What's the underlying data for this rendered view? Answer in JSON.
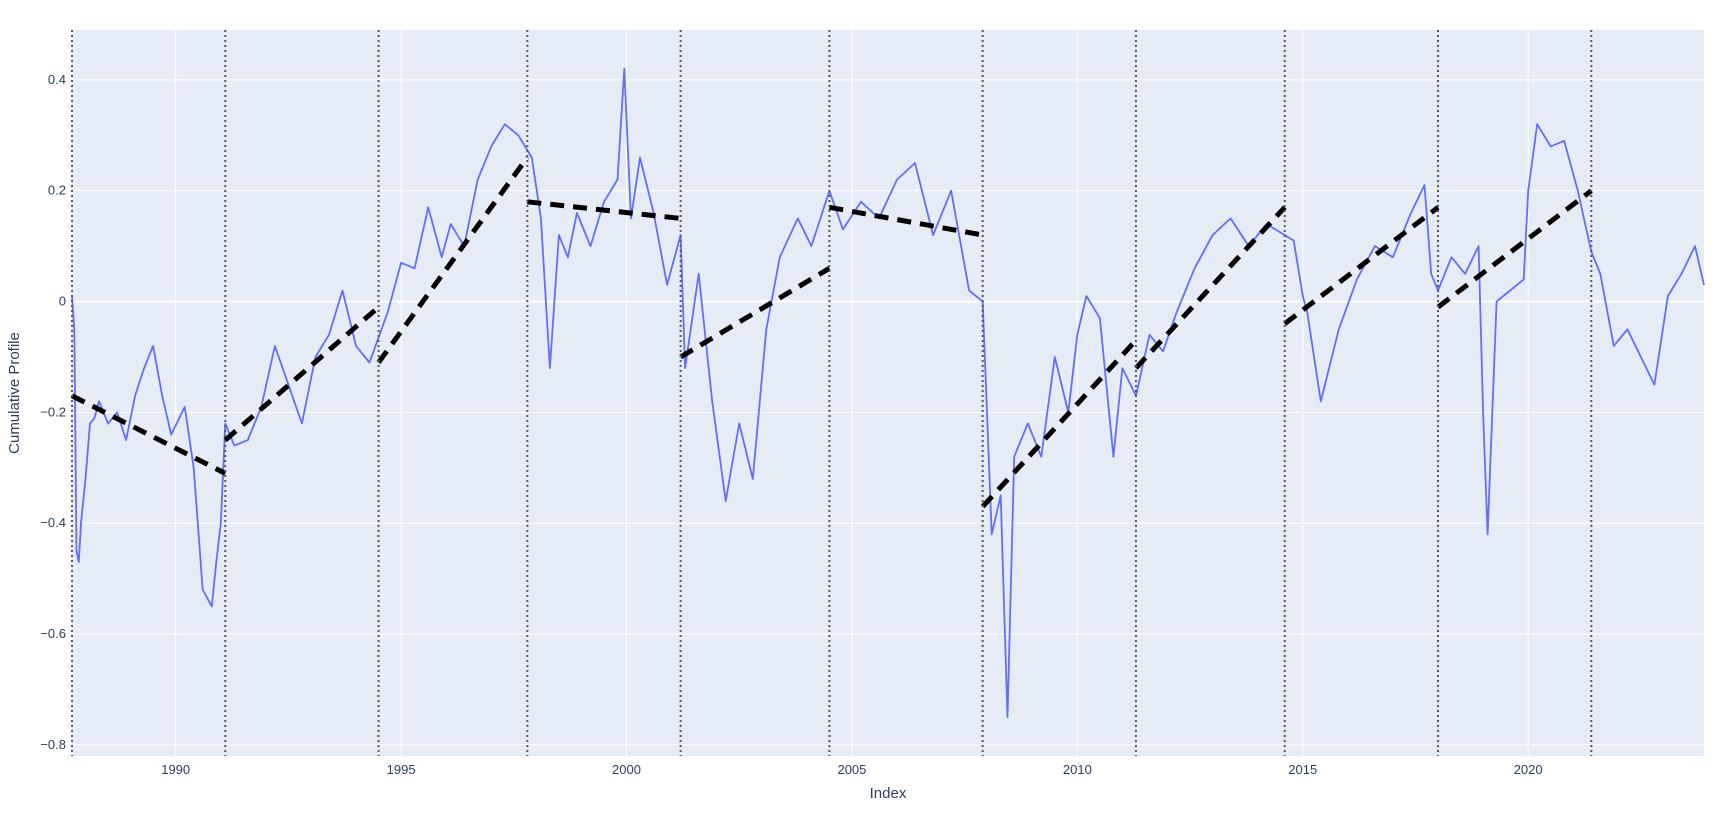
{
  "chart_data": {
    "type": "line",
    "xlabel": "Index",
    "ylabel": "Cumulative Profile",
    "xlim": [
      1987.7,
      2023.9
    ],
    "ylim": [
      -0.82,
      0.49
    ],
    "x_ticks": [
      {
        "v": 1990,
        "label": "1990"
      },
      {
        "v": 1995,
        "label": "1995"
      },
      {
        "v": 2000,
        "label": "2000"
      },
      {
        "v": 2005,
        "label": "2005"
      },
      {
        "v": 2010,
        "label": "2010"
      },
      {
        "v": 2015,
        "label": "2015"
      },
      {
        "v": 2020,
        "label": "2020"
      }
    ],
    "y_ticks": [
      {
        "v": 0.4,
        "label": "0.4"
      },
      {
        "v": 0.2,
        "label": "0.2"
      },
      {
        "v": 0,
        "label": "0"
      },
      {
        "v": -0.2,
        "label": "−0.2"
      },
      {
        "v": -0.4,
        "label": "−0.4"
      },
      {
        "v": -0.6,
        "label": "−0.6"
      },
      {
        "v": -0.8,
        "label": "−0.8"
      }
    ],
    "grid": true,
    "colors": {
      "background": "#e5ecf6",
      "grid": "#ffffff",
      "series": "#636efa",
      "trend": "#000000",
      "breaks": "#555566"
    },
    "series": [
      {
        "x": [
          1987.7,
          1987.75,
          1987.8,
          1987.85,
          1987.9,
          1988.0,
          1988.1,
          1988.2,
          1988.3,
          1988.5,
          1988.7,
          1988.9,
          1989.1,
          1989.3,
          1989.5,
          1989.7,
          1989.9,
          1990.2,
          1990.4,
          1990.6,
          1990.8,
          1990.9,
          1991.0,
          1991.1,
          1991.3,
          1991.6,
          1991.9,
          1992.2,
          1992.5,
          1992.8,
          1993.1,
          1993.4,
          1993.7,
          1994.0,
          1994.3,
          1994.7,
          1995.0,
          1995.3,
          1995.6,
          1995.9,
          1996.1,
          1996.4,
          1996.7,
          1997.0,
          1997.3,
          1997.6,
          1997.9,
          1998.1,
          1998.3,
          1998.5,
          1998.7,
          1998.9,
          1999.2,
          1999.5,
          1999.8,
          1999.95,
          2000.1,
          2000.3,
          2000.6,
          2000.9,
          2001.2,
          2001.3,
          2001.6,
          2001.9,
          2002.2,
          2002.5,
          2002.8,
          2003.1,
          2003.4,
          2003.8,
          2004.1,
          2004.5,
          2004.8,
          2005.2,
          2005.6,
          2006.0,
          2006.4,
          2006.8,
          2007.2,
          2007.6,
          2007.9,
          2008.1,
          2008.3,
          2008.45,
          2008.6,
          2008.9,
          2009.2,
          2009.5,
          2009.8,
          2010.0,
          2010.2,
          2010.5,
          2010.8,
          2011.0,
          2011.3,
          2011.6,
          2011.9,
          2012.2,
          2012.6,
          2013.0,
          2013.4,
          2013.8,
          2014.2,
          2014.6,
          2014.8,
          2015.0,
          2015.1,
          2015.4,
          2015.8,
          2016.2,
          2016.6,
          2017.0,
          2017.4,
          2017.7,
          2017.85,
          2018.0,
          2018.3,
          2018.6,
          2018.9,
          2019.0,
          2019.1,
          2019.3,
          2019.6,
          2019.9,
          2020.0,
          2020.2,
          2020.5,
          2020.8,
          2021.1,
          2021.4,
          2021.6,
          2021.9,
          2022.2,
          2022.5,
          2022.8,
          2023.1,
          2023.4,
          2023.7,
          2023.9
        ],
        "values": [
          0.01,
          -0.05,
          -0.45,
          -0.47,
          -0.4,
          -0.32,
          -0.22,
          -0.21,
          -0.18,
          -0.22,
          -0.2,
          -0.25,
          -0.17,
          -0.12,
          -0.08,
          -0.17,
          -0.24,
          -0.19,
          -0.3,
          -0.52,
          -0.55,
          -0.47,
          -0.4,
          -0.22,
          -0.26,
          -0.25,
          -0.19,
          -0.08,
          -0.15,
          -0.22,
          -0.1,
          -0.06,
          0.02,
          -0.08,
          -0.11,
          -0.02,
          0.07,
          0.06,
          0.17,
          0.08,
          0.14,
          0.1,
          0.22,
          0.28,
          0.32,
          0.3,
          0.26,
          0.15,
          -0.12,
          0.12,
          0.08,
          0.16,
          0.1,
          0.18,
          0.22,
          0.42,
          0.15,
          0.26,
          0.16,
          0.03,
          0.12,
          -0.12,
          0.05,
          -0.18,
          -0.36,
          -0.22,
          -0.32,
          -0.05,
          0.08,
          0.15,
          0.1,
          0.2,
          0.13,
          0.18,
          0.15,
          0.22,
          0.25,
          0.12,
          0.2,
          0.02,
          0.0,
          -0.42,
          -0.35,
          -0.75,
          -0.28,
          -0.22,
          -0.28,
          -0.1,
          -0.2,
          -0.06,
          0.01,
          -0.03,
          -0.28,
          -0.12,
          -0.17,
          -0.06,
          -0.09,
          -0.02,
          0.06,
          0.12,
          0.15,
          0.1,
          0.14,
          0.12,
          0.11,
          0.01,
          -0.02,
          -0.18,
          -0.05,
          0.04,
          0.1,
          0.08,
          0.16,
          0.21,
          0.05,
          0.02,
          0.08,
          0.05,
          0.1,
          -0.2,
          -0.42,
          0.0,
          0.02,
          0.04,
          0.2,
          0.32,
          0.28,
          0.29,
          0.2,
          0.09,
          0.05,
          -0.08,
          -0.05,
          -0.1,
          -0.15,
          0.01,
          0.05,
          0.1,
          0.03
        ]
      }
    ],
    "trend_segments": [
      {
        "x0": 1987.7,
        "y0": -0.17,
        "x1": 1991.1,
        "y1": -0.31
      },
      {
        "x0": 1991.1,
        "y0": -0.25,
        "x1": 1994.5,
        "y1": -0.01
      },
      {
        "x0": 1994.5,
        "y0": -0.11,
        "x1": 1997.8,
        "y1": 0.26
      },
      {
        "x0": 1997.8,
        "y0": 0.18,
        "x1": 2001.2,
        "y1": 0.15
      },
      {
        "x0": 2001.2,
        "y0": -0.1,
        "x1": 2004.5,
        "y1": 0.06
      },
      {
        "x0": 2004.5,
        "y0": 0.17,
        "x1": 2007.9,
        "y1": 0.12
      },
      {
        "x0": 2007.9,
        "y0": -0.37,
        "x1": 2011.3,
        "y1": -0.07
      },
      {
        "x0": 2011.3,
        "y0": -0.12,
        "x1": 2014.6,
        "y1": 0.17
      },
      {
        "x0": 2014.6,
        "y0": -0.04,
        "x1": 2018.0,
        "y1": 0.17
      },
      {
        "x0": 2018.0,
        "y0": -0.01,
        "x1": 2021.4,
        "y1": 0.2
      }
    ],
    "breakpoints": [
      1987.7,
      1991.1,
      1994.5,
      1997.8,
      2001.2,
      2004.5,
      2007.9,
      2011.3,
      2014.6,
      2018.0,
      2021.4
    ]
  }
}
